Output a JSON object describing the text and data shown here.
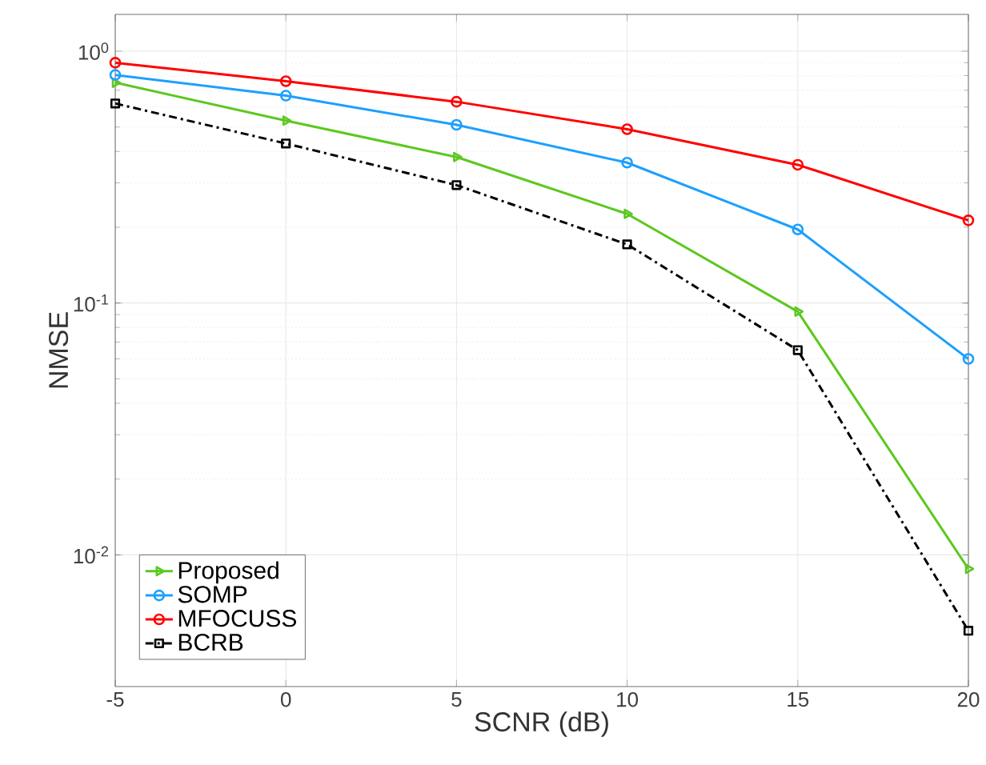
{
  "chart_data": {
    "type": "line",
    "xlabel": "SCNR (dB)",
    "ylabel": "NMSE",
    "log": "y",
    "grid": true,
    "legend": "bottom left",
    "x": [
      -5,
      0,
      5,
      10,
      15,
      20
    ],
    "xlim": [
      -5,
      20
    ],
    "xticks": [
      -5,
      0,
      5,
      10,
      15,
      20
    ],
    "ylim": [
      0.003,
      1.4
    ],
    "yticks": [
      {
        "value": 0.01,
        "label": "10$^{-2}$"
      },
      {
        "value": 0.1,
        "label": "10$^{-1}$"
      },
      {
        "value": 1,
        "label": "10$^{0}$"
      }
    ],
    "series": [
      {
        "name": "Proposed",
        "color": "#5cc81e",
        "marker": "triangle",
        "line_style": "solid",
        "values": [
          0.75,
          0.53,
          0.38,
          0.226,
          0.0925,
          0.0088
        ]
      },
      {
        "name": "SOMP",
        "color": "#1ca0ff",
        "marker": "circle",
        "line_style": "solid",
        "values": [
          0.805,
          0.666,
          0.51,
          0.361,
          0.196,
          0.06
        ]
      },
      {
        "name": "MFOCUSS",
        "color": "#ff0000",
        "marker": "circle",
        "line_style": "solid",
        "values": [
          0.9,
          0.76,
          0.63,
          0.49,
          0.354,
          0.213
        ]
      },
      {
        "name": "BCRB",
        "color": "#000000",
        "marker": "square",
        "line_style": "dashed",
        "values": [
          0.62,
          0.43,
          0.294,
          0.171,
          0.065,
          0.005
        ]
      }
    ]
  }
}
